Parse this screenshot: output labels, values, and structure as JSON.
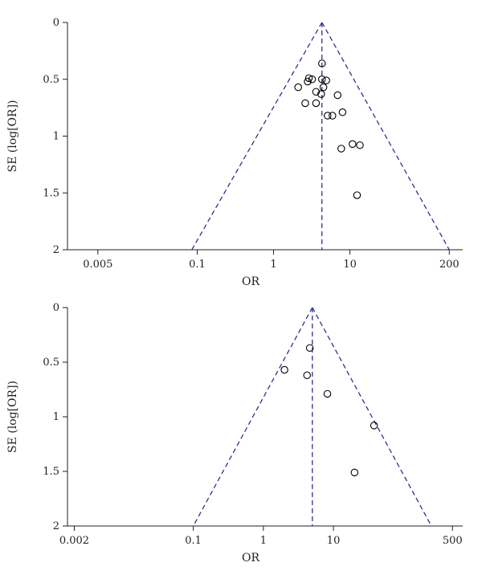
{
  "chart_data": [
    {
      "type": "scatter",
      "panel": "top",
      "xlabel": "OR",
      "ylabel": "SE (log[OR])",
      "x_scale": "log",
      "xlim": [
        0.002,
        300
      ],
      "ylim": [
        2,
        0
      ],
      "x_ticks": [
        {
          "value": 0.005,
          "label": "0.005"
        },
        {
          "value": 0.1,
          "label": "0.1"
        },
        {
          "value": 1,
          "label": "1"
        },
        {
          "value": 10,
          "label": "10"
        },
        {
          "value": 200,
          "label": "200"
        }
      ],
      "y_ticks": [
        {
          "value": 0,
          "label": "0"
        },
        {
          "value": 0.5,
          "label": "0.5"
        },
        {
          "value": 1,
          "label": "1"
        },
        {
          "value": 1.5,
          "label": "1.5"
        },
        {
          "value": 2,
          "label": "2"
        }
      ],
      "pooled_or": 4.3,
      "funnel": {
        "apex_or": 4.3,
        "apex_se": 0,
        "base_se": 2,
        "left_or": 0.085,
        "right_or": 200
      },
      "points": [
        {
          "or": 4.3,
          "se": 0.36
        },
        {
          "or": 2.9,
          "se": 0.49
        },
        {
          "or": 3.2,
          "se": 0.5
        },
        {
          "or": 2.8,
          "se": 0.52
        },
        {
          "or": 4.3,
          "se": 0.5
        },
        {
          "or": 4.9,
          "se": 0.51
        },
        {
          "or": 2.1,
          "se": 0.57
        },
        {
          "or": 4.5,
          "se": 0.57
        },
        {
          "or": 3.6,
          "se": 0.61
        },
        {
          "or": 4.2,
          "se": 0.63
        },
        {
          "or": 6.9,
          "se": 0.64
        },
        {
          "or": 2.6,
          "se": 0.71
        },
        {
          "or": 3.6,
          "se": 0.71
        },
        {
          "or": 8.0,
          "se": 0.79
        },
        {
          "or": 5.1,
          "se": 0.82
        },
        {
          "or": 5.9,
          "se": 0.82
        },
        {
          "or": 10.8,
          "se": 1.07
        },
        {
          "or": 13.5,
          "se": 1.08
        },
        {
          "or": 7.7,
          "se": 1.11
        },
        {
          "or": 12.4,
          "se": 1.52
        }
      ]
    },
    {
      "type": "scatter",
      "panel": "bottom",
      "xlabel": "OR",
      "ylabel": "SE (log[OR])",
      "x_scale": "log",
      "xlim": [
        0.0016,
        700
      ],
      "ylim": [
        2,
        0
      ],
      "x_ticks": [
        {
          "value": 0.002,
          "label": "0.002"
        },
        {
          "value": 0.1,
          "label": "0.1"
        },
        {
          "value": 1,
          "label": "1"
        },
        {
          "value": 10,
          "label": "10"
        },
        {
          "value": 500,
          "label": "500"
        }
      ],
      "y_ticks": [
        {
          "value": 0,
          "label": "0"
        },
        {
          "value": 0.5,
          "label": "0.5"
        },
        {
          "value": 1,
          "label": "1"
        },
        {
          "value": 1.5,
          "label": "1.5"
        },
        {
          "value": 2,
          "label": "2"
        }
      ],
      "pooled_or": 5.0,
      "funnel": {
        "apex_or": 5.0,
        "apex_se": 0,
        "base_se": 2,
        "left_or": 0.1,
        "right_or": 250
      },
      "points": [
        {
          "or": 4.6,
          "se": 0.37
        },
        {
          "or": 2.0,
          "se": 0.57
        },
        {
          "or": 4.2,
          "se": 0.62
        },
        {
          "or": 8.2,
          "se": 0.79
        },
        {
          "or": 38,
          "se": 1.08
        },
        {
          "or": 20,
          "se": 1.51
        }
      ]
    }
  ]
}
